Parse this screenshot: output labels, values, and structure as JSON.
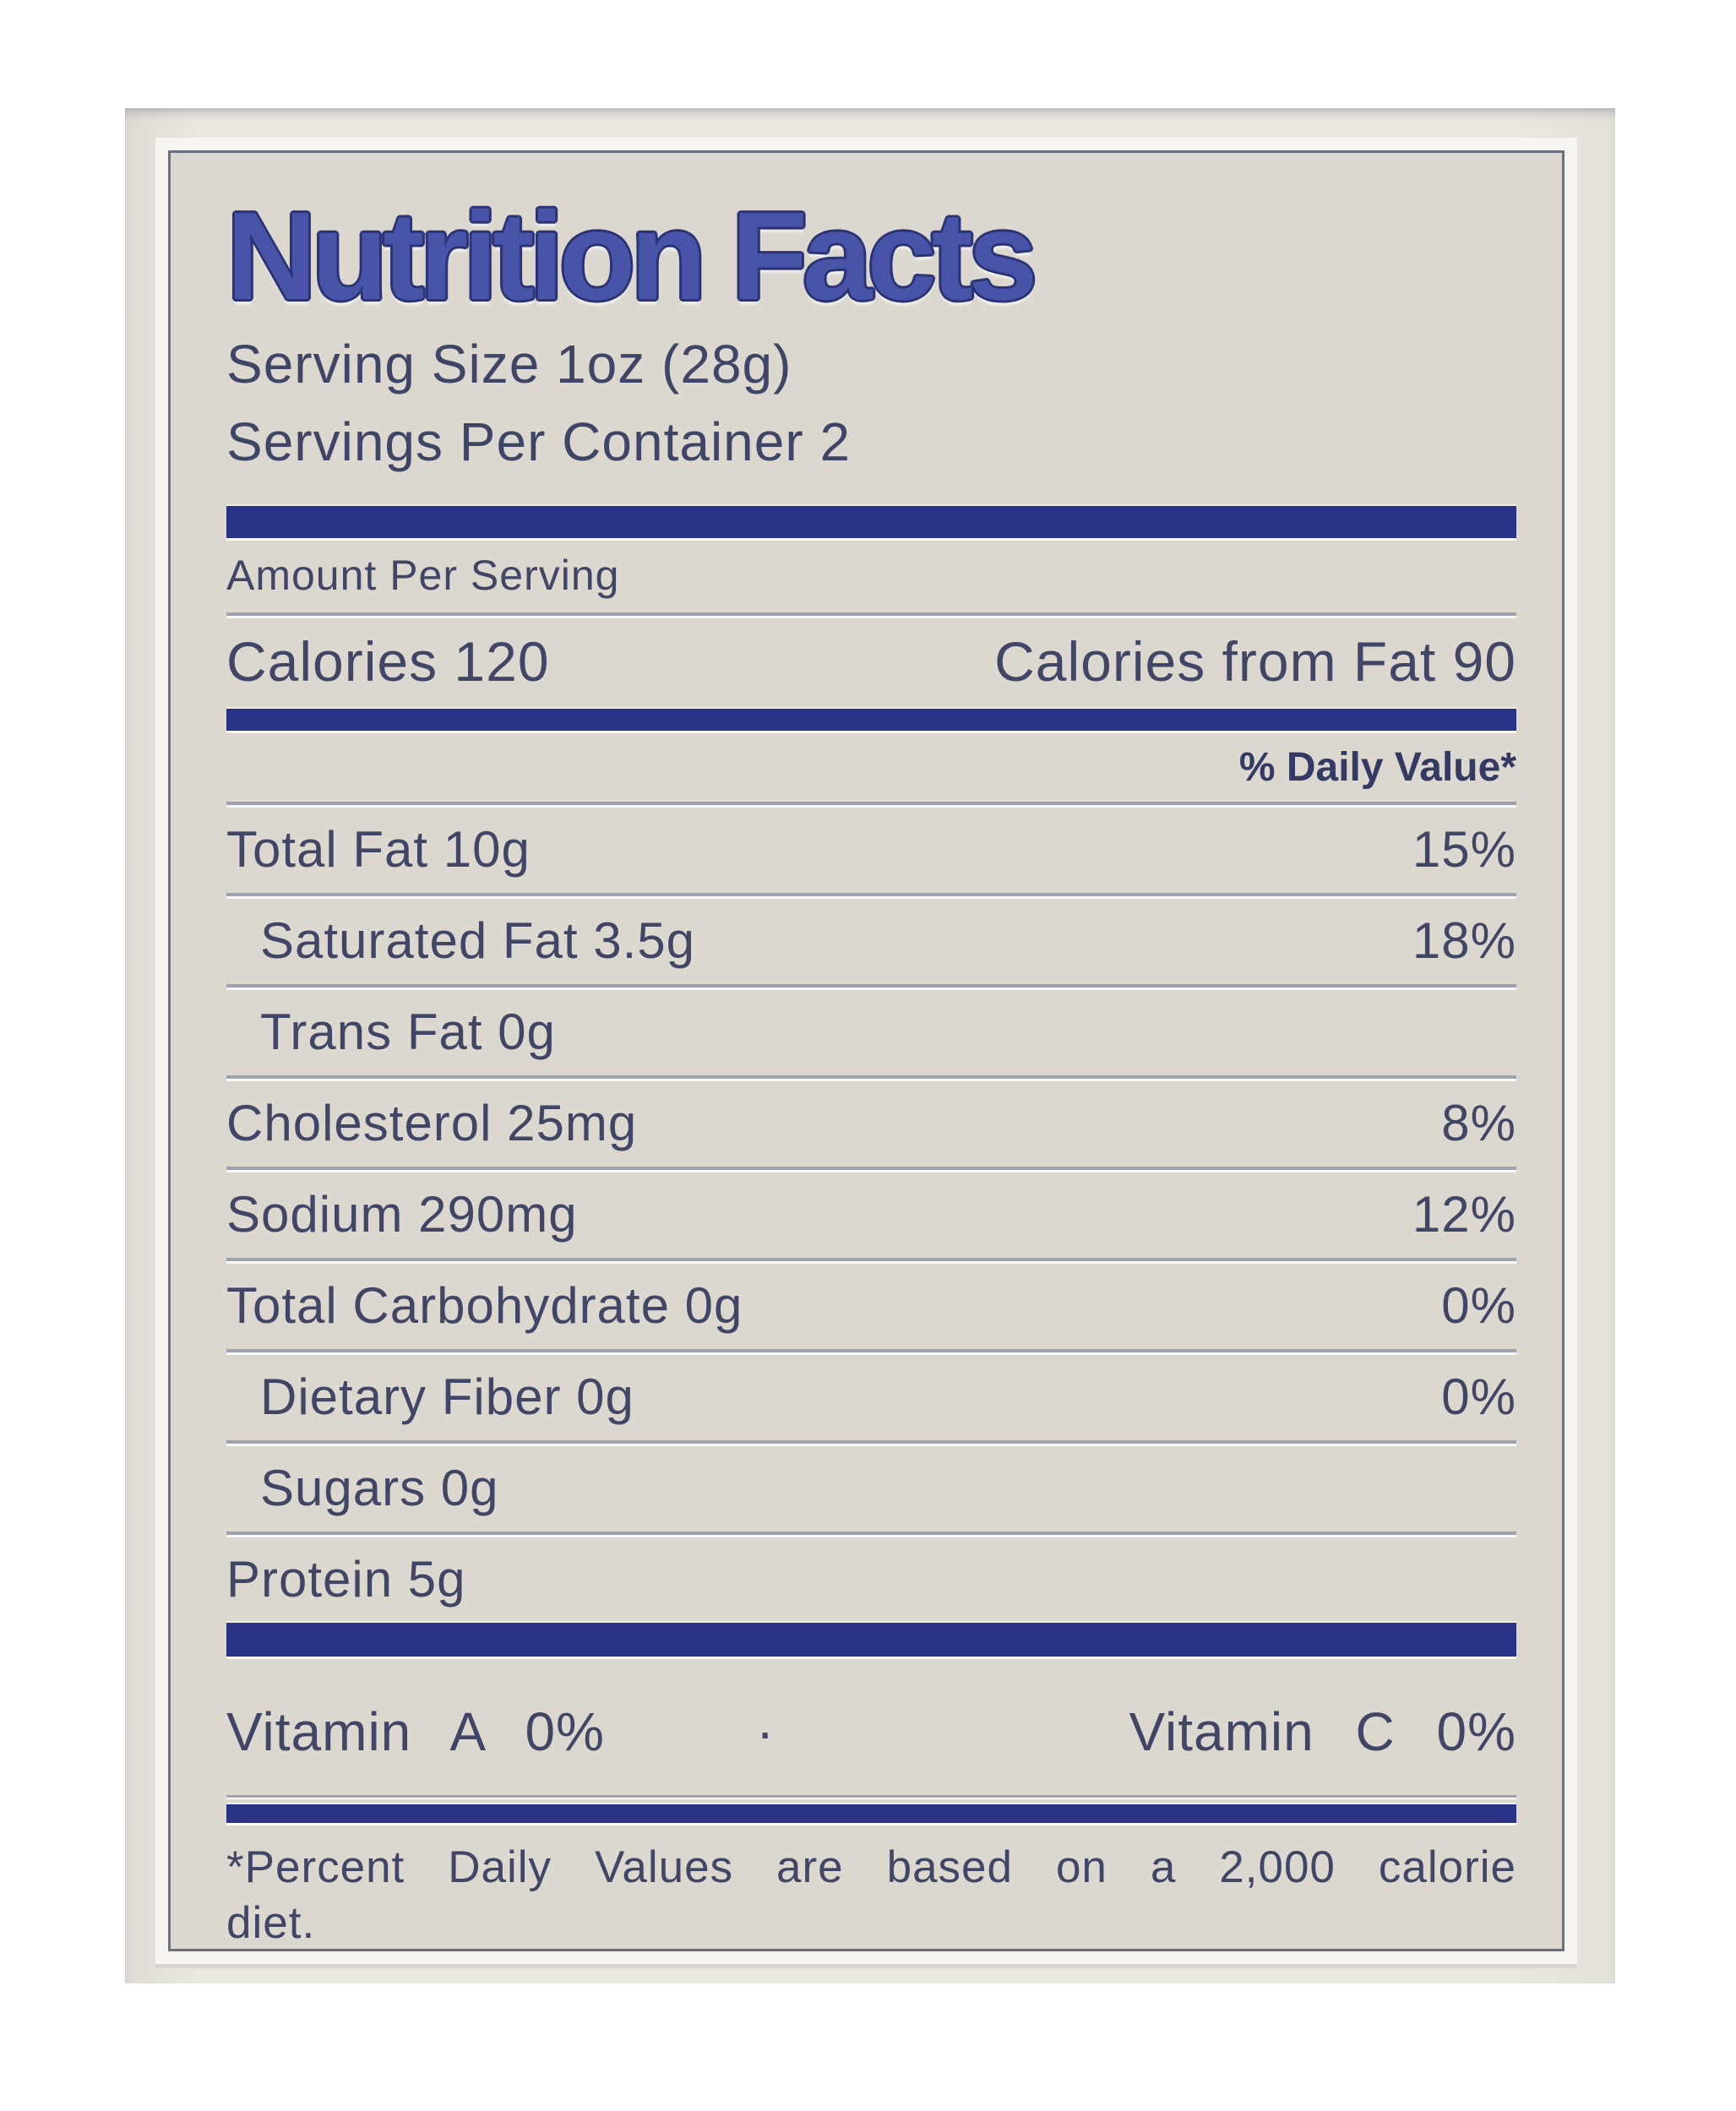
{
  "label": {
    "title": "Nutrition Facts",
    "serving_size": "Serving Size 1oz (28g)",
    "servings_per_container": "Servings Per Container 2",
    "amount_per_serving": "Amount Per Serving",
    "calories": "Calories 120",
    "calories_from_fat": "Calories from Fat 90",
    "daily_value_header": "% Daily Value*",
    "nutrients": [
      {
        "name": "Total Fat 10g",
        "dv": "15%",
        "indent": false
      },
      {
        "name": "Saturated Fat 3.5g",
        "dv": "18%",
        "indent": true
      },
      {
        "name": "Trans Fat 0g",
        "dv": "",
        "indent": true
      },
      {
        "name": "Cholesterol 25mg",
        "dv": "8%",
        "indent": false
      },
      {
        "name": "Sodium 290mg",
        "dv": "12%",
        "indent": false
      },
      {
        "name": "Total Carbohydrate 0g",
        "dv": "0%",
        "indent": false
      },
      {
        "name": "Dietary Fiber 0g",
        "dv": "0%",
        "indent": true
      },
      {
        "name": "Sugars 0g",
        "dv": "",
        "indent": true
      },
      {
        "name": "Protein 5g",
        "dv": "",
        "indent": false
      }
    ],
    "vitamins": {
      "left": "Vitamin A 0%",
      "separator": "·",
      "right": "Vitamin C 0%"
    },
    "footnote_line1": "*Percent Daily Values are based on a 2,000 calorie",
    "footnote_line2": "diet.",
    "colors": {
      "bar_blue": "#2B3387",
      "title_blue": "#4754A8",
      "title_outline": "#2B3374",
      "text_navy": "#3F4566",
      "rule_gray": "#9CA2B0",
      "label_background": "#DCD8D0",
      "photo_background": "#EBE8E2"
    }
  }
}
